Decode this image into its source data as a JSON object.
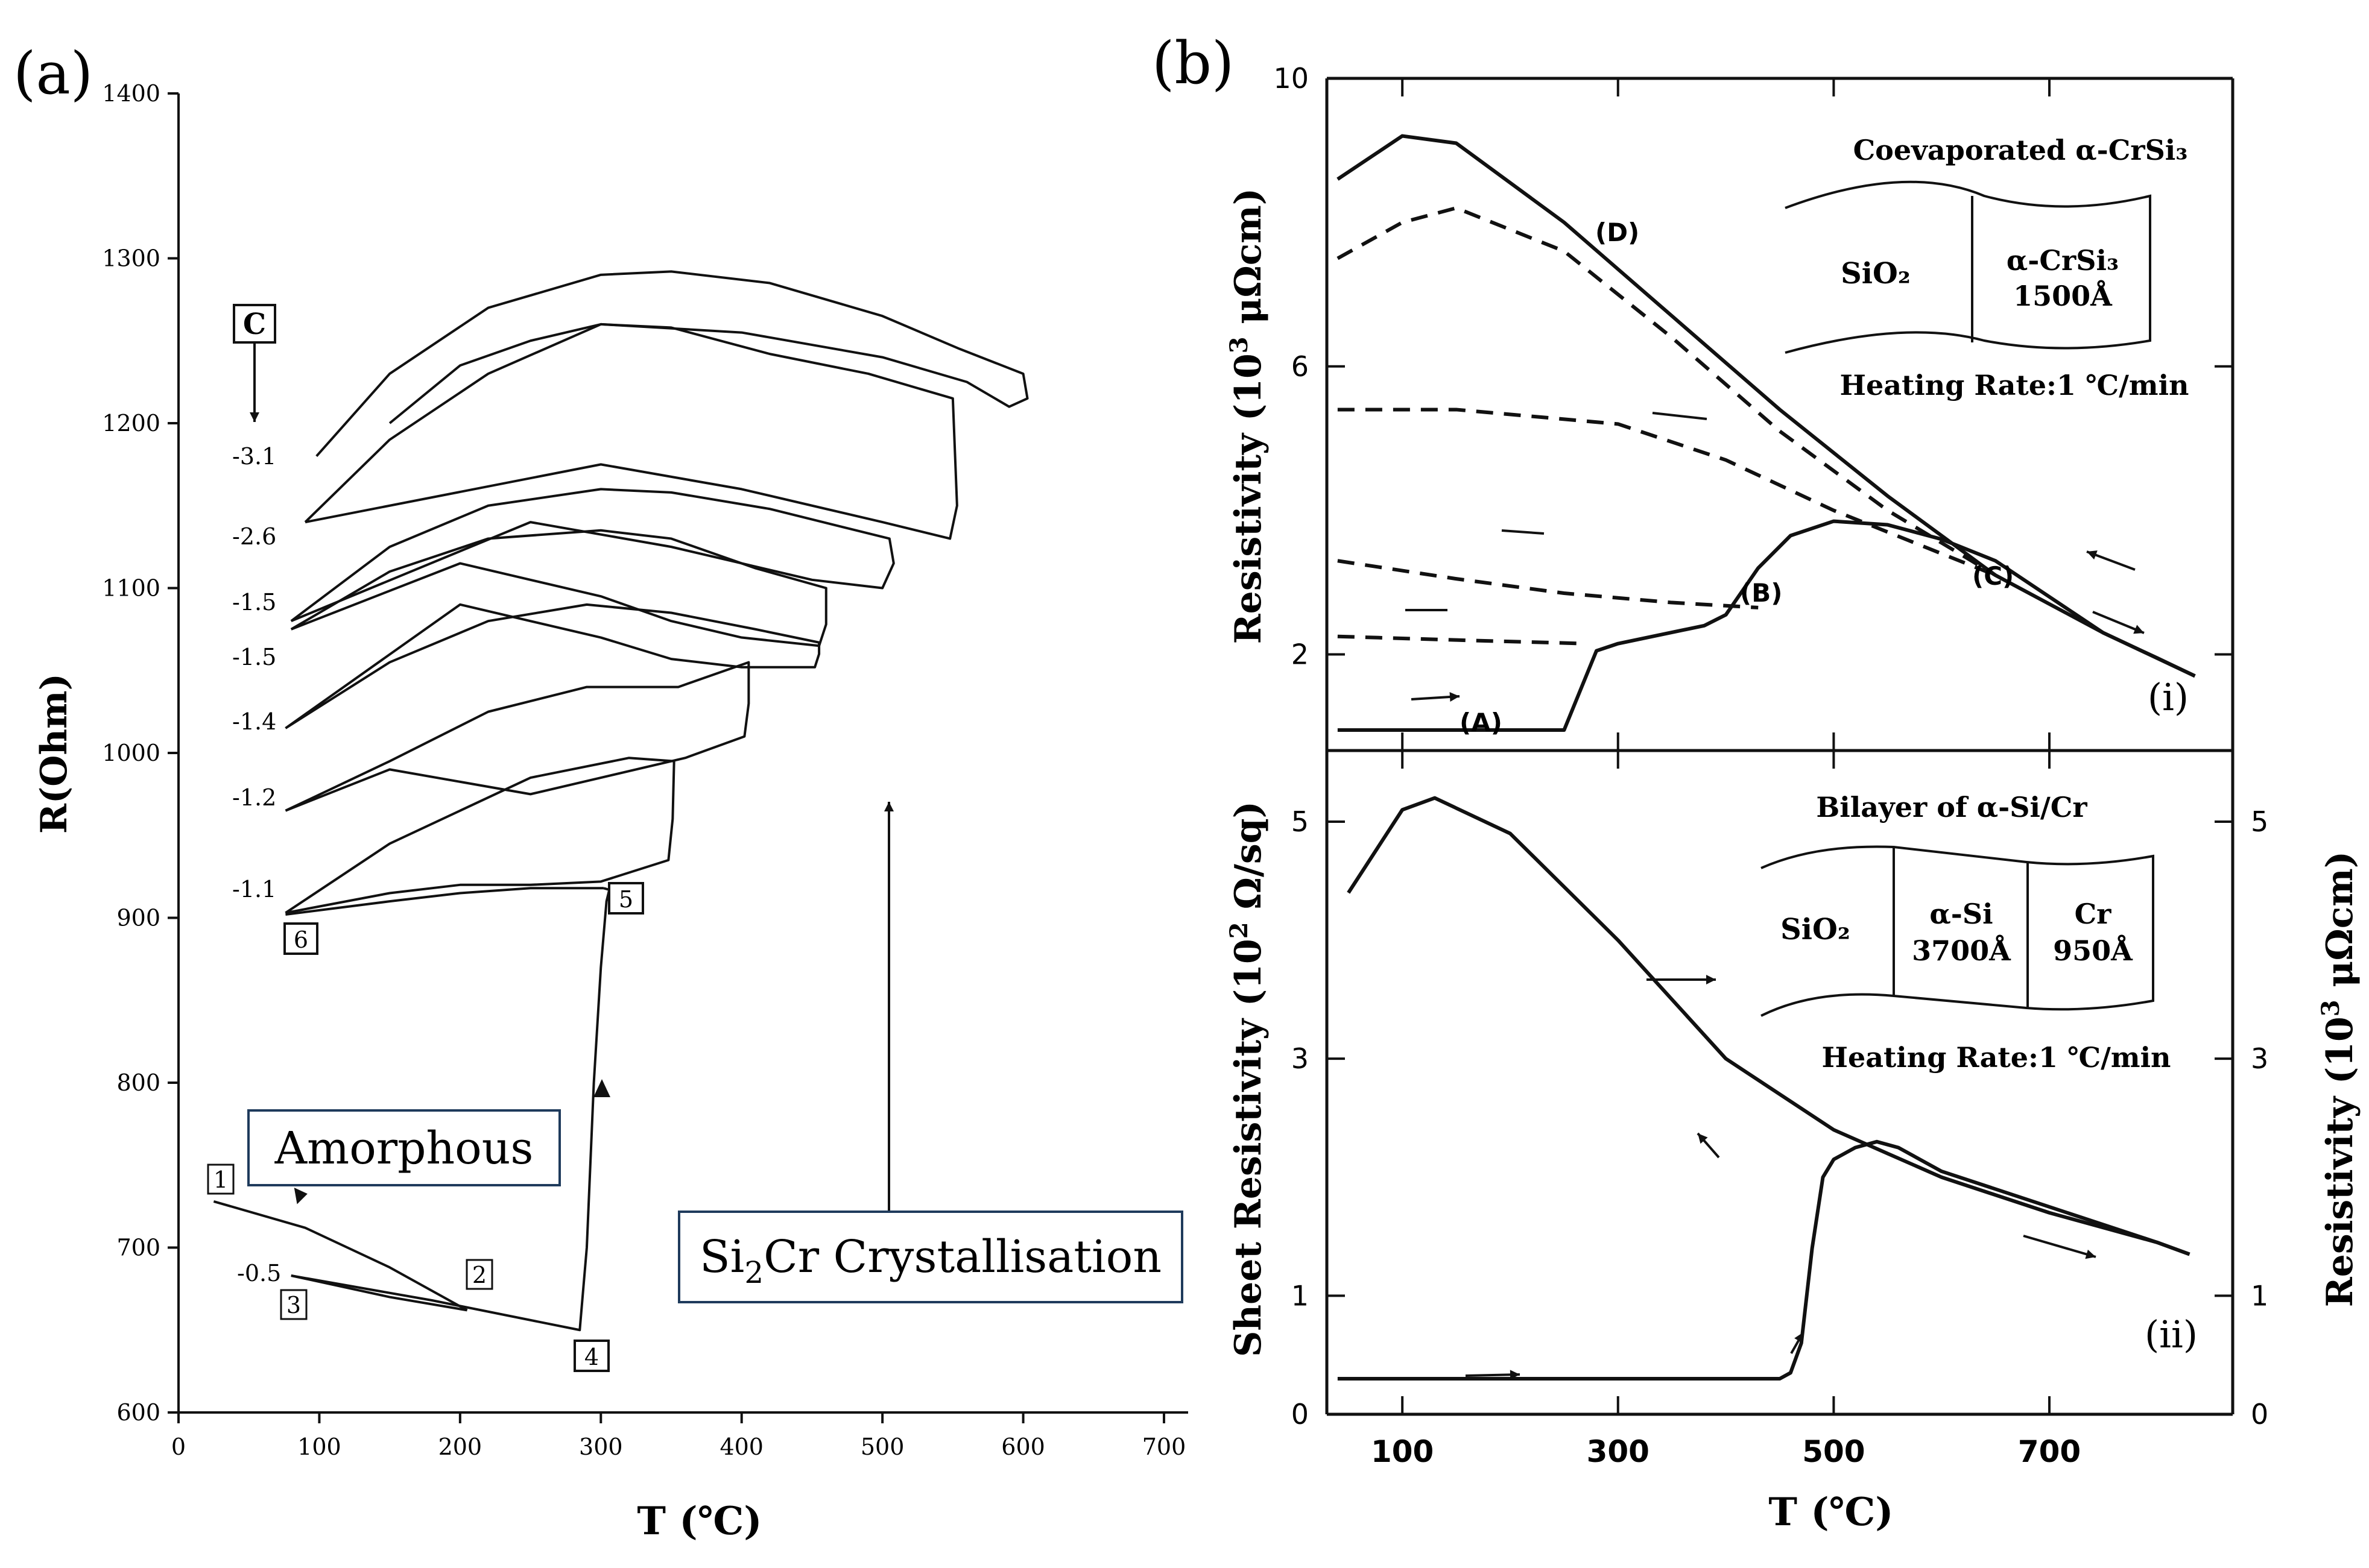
{
  "figure_labels": {
    "a": "(a)",
    "b": "(b)"
  },
  "chart_data": [
    {
      "type": "line",
      "id": "a",
      "xlabel": "T (℃)",
      "ylabel": "R(Ohm)",
      "xlim": [
        0,
        700
      ],
      "ylim": [
        600,
        1400
      ],
      "xticks": [
        0,
        100,
        200,
        300,
        400,
        500,
        600,
        700
      ],
      "yticks": [
        600,
        700,
        800,
        900,
        1000,
        1100,
        1200,
        1300,
        1400
      ],
      "annotations": {
        "amorphous": "Amorphous",
        "crystallisation_prefix": "Si",
        "crystallisation_sub": "2",
        "crystallisation_suffix": "Cr Crystallisation",
        "c_box": "C",
        "c_values": [
          "-3.1",
          "-2.6",
          "-1.5",
          "-1.5",
          "-1.4",
          "-1.2",
          "-1.1",
          "-0.5"
        ],
        "point_labels": [
          "1",
          "2",
          "3",
          "4",
          "5",
          "6"
        ]
      },
      "series": [
        {
          "name": "1-2 heating",
          "x": [
            25,
            90,
            150,
            205
          ],
          "y": [
            728,
            712,
            688,
            662
          ]
        },
        {
          "name": "2-3 cooling",
          "x": [
            205,
            150,
            80
          ],
          "y": [
            662,
            670,
            683
          ]
        },
        {
          "name": "3-4-5 heating",
          "x": [
            80,
            180,
            285,
            290,
            295,
            300,
            304,
            306,
            302
          ],
          "y": [
            683,
            668,
            650,
            700,
            800,
            870,
            910,
            917,
            918
          ]
        },
        {
          "name": "5-6 cooling",
          "x": [
            302,
            250,
            200,
            150,
            76
          ],
          "y": [
            918,
            918,
            915,
            910,
            902
          ]
        },
        {
          "name": "loop -1.1",
          "x": [
            76,
            150,
            250,
            320,
            352,
            351,
            348,
            300,
            250,
            200,
            150,
            76
          ],
          "y": [
            903,
            945,
            985,
            997,
            995,
            960,
            935,
            922,
            920,
            920,
            915,
            903
          ]
        },
        {
          "name": "loop -1.2",
          "x": [
            76,
            150,
            220,
            290,
            355,
            405,
            405,
            402,
            360,
            300,
            250,
            150,
            76
          ],
          "y": [
            965,
            995,
            1025,
            1040,
            1040,
            1055,
            1030,
            1010,
            997,
            985,
            975,
            990,
            965
          ]
        },
        {
          "name": "loop -1.4",
          "x": [
            76,
            150,
            220,
            290,
            350,
            410,
            455,
            455,
            452,
            400,
            350,
            300,
            200,
            76
          ],
          "y": [
            1015,
            1055,
            1080,
            1090,
            1085,
            1075,
            1067,
            1060,
            1052,
            1052,
            1057,
            1070,
            1090,
            1015
          ]
        },
        {
          "name": "loop -1.5a",
          "x": [
            80,
            150,
            220,
            300,
            350,
            410,
            460,
            460,
            455,
            400,
            350,
            300,
            200,
            80
          ],
          "y": [
            1075,
            1110,
            1130,
            1135,
            1130,
            1112,
            1100,
            1078,
            1065,
            1070,
            1080,
            1095,
            1115,
            1075
          ]
        },
        {
          "name": "loop -1.5b",
          "x": [
            80,
            150,
            220,
            300,
            350,
            420,
            505,
            508,
            500,
            450,
            400,
            350,
            250,
            80
          ],
          "y": [
            1080,
            1125,
            1150,
            1160,
            1158,
            1148,
            1130,
            1115,
            1100,
            1105,
            1115,
            1125,
            1140,
            1080
          ]
        },
        {
          "name": "loop -2.6",
          "x": [
            90,
            150,
            220,
            300,
            350,
            420,
            490,
            550,
            553,
            548,
            500,
            450,
            400,
            300,
            90
          ],
          "y": [
            1140,
            1190,
            1230,
            1260,
            1258,
            1242,
            1230,
            1215,
            1150,
            1130,
            1140,
            1150,
            1160,
            1175,
            1140
          ]
        },
        {
          "name": "loop -3.1",
          "x": [
            98,
            150,
            220,
            300,
            350,
            420,
            500,
            555,
            600,
            603,
            590,
            560,
            500,
            400,
            300,
            250,
            200,
            150
          ],
          "y": [
            1180,
            1230,
            1270,
            1290,
            1292,
            1285,
            1265,
            1245,
            1230,
            1215,
            1210,
            1225,
            1240,
            1255,
            1260,
            1250,
            1235,
            1200
          ]
        }
      ]
    },
    {
      "type": "line",
      "id": "b-i",
      "title": "Coevaporated α-CrSi₃",
      "ylabel_prefix": "Resistivity (10",
      "ylabel_sup": "3",
      "ylabel_suffix": " μΩcm)",
      "xlim": [
        30,
        870
      ],
      "ylim": [
        1.0,
        10.0
      ],
      "yticks": [
        2,
        6,
        10
      ],
      "inset": {
        "left": "SiO₂",
        "right_1": "α-CrSi₃",
        "right_2": "1500Å"
      },
      "heating_rate": "Heating Rate:1 ℃/min",
      "panel_tag": "(i)",
      "point_labels": [
        "(A)",
        "(B)",
        "(C)",
        "(D)"
      ],
      "series": [
        {
          "name": "main solid",
          "style": "solid",
          "x": [
            40,
            100,
            150,
            250,
            265,
            280,
            300,
            380,
            400,
            430,
            460,
            500,
            550,
            600,
            650,
            700,
            750,
            800,
            835
          ],
          "y": [
            0.95,
            0.95,
            0.95,
            0.95,
            1.5,
            2.05,
            2.15,
            2.4,
            2.55,
            3.2,
            3.65,
            3.85,
            3.8,
            3.6,
            3.3,
            2.8,
            2.3,
            1.95,
            1.7
          ]
        },
        {
          "name": "upper solid (D)",
          "style": "solid",
          "x": [
            40,
            100,
            150,
            250,
            350,
            450,
            550,
            650,
            750,
            835
          ],
          "y": [
            8.6,
            9.2,
            9.1,
            8.0,
            6.7,
            5.4,
            4.2,
            3.1,
            2.3,
            1.7
          ]
        },
        {
          "name": "dashed 1",
          "style": "dashed",
          "x": [
            40,
            100,
            150,
            250,
            350,
            450,
            550,
            650
          ],
          "y": [
            7.5,
            8.0,
            8.2,
            7.6,
            6.4,
            5.1,
            4.0,
            3.1
          ]
        },
        {
          "name": "dashed 2",
          "style": "dashed",
          "x": [
            40,
            150,
            300,
            400,
            500,
            600,
            650
          ],
          "y": [
            5.4,
            5.4,
            5.2,
            4.7,
            4.0,
            3.4,
            3.1
          ]
        },
        {
          "name": "dashed 3",
          "style": "dashed",
          "x": [
            40,
            150,
            250,
            350,
            430
          ],
          "y": [
            3.3,
            3.05,
            2.85,
            2.72,
            2.65
          ]
        },
        {
          "name": "dashed 4",
          "style": "dashed",
          "x": [
            40,
            150,
            270
          ],
          "y": [
            2.25,
            2.2,
            2.15
          ]
        }
      ]
    },
    {
      "type": "line",
      "id": "b-ii",
      "title": "Bilayer of α-Si/Cr",
      "xlabel": "T (℃)",
      "xticks": [
        "100",
        "300",
        "500",
        "700"
      ],
      "xtick_values": [
        100,
        300,
        500,
        700
      ],
      "xlim": [
        30,
        870
      ],
      "ylim": [
        0,
        5.6
      ],
      "ylabel_left_prefix": "Sheet Resistivity (10",
      "ylabel_left_sup": "2",
      "ylabel_left_suffix": " Ω/sq)",
      "yticks_left": [
        0,
        1,
        3,
        5
      ],
      "ylabel_right_prefix": "Resistivity (10",
      "ylabel_right_sup": "3",
      "ylabel_right_suffix": " μΩcm)",
      "yticks_right": [
        0,
        1,
        3,
        5
      ],
      "inset": {
        "left": "SiO₂",
        "middle_1": "α-Si",
        "middle_2": "3700Å",
        "right_1": "Cr",
        "right_2": "950Å"
      },
      "heating_rate": "Heating Rate:1 ℃/min",
      "panel_tag": "(ii)",
      "series": [
        {
          "name": "heating",
          "style": "solid",
          "x": [
            40,
            200,
            300,
            400,
            450,
            460,
            470,
            480,
            490,
            500,
            520,
            540,
            560,
            600,
            700,
            800,
            830
          ],
          "y": [
            0.3,
            0.3,
            0.3,
            0.3,
            0.3,
            0.35,
            0.6,
            1.4,
            2.0,
            2.15,
            2.25,
            2.3,
            2.25,
            2.05,
            1.75,
            1.45,
            1.35
          ]
        },
        {
          "name": "cooling / first curve",
          "style": "solid",
          "x": [
            50,
            100,
            130,
            200,
            300,
            400,
            500,
            550,
            600,
            700,
            800,
            830
          ],
          "y": [
            4.4,
            5.1,
            5.2,
            4.9,
            4.0,
            3.0,
            2.4,
            2.2,
            2.0,
            1.7,
            1.45,
            1.35
          ]
        }
      ]
    }
  ]
}
